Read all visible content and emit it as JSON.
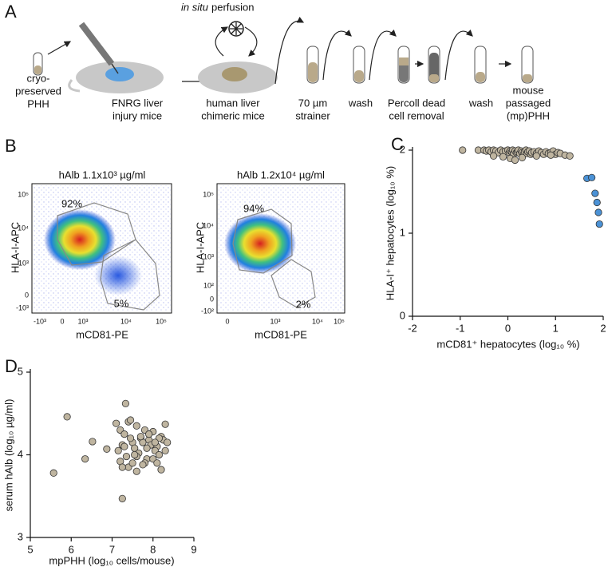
{
  "panel_a": {
    "label": "A",
    "cryo": [
      "cryo-",
      "preserved",
      "PHH"
    ],
    "fnrg": [
      "FNRG liver",
      "injury mice"
    ],
    "perfusion_italic": "in situ",
    "perfusion": "perfusion",
    "chimeric": [
      "human liver",
      "chimeric mice"
    ],
    "strainer": [
      "70 µm",
      "strainer"
    ],
    "wash1": "wash",
    "percoll": [
      "Percoll dead",
      "cell removal"
    ],
    "wash2": "wash",
    "mpphh": [
      "mouse",
      "passaged",
      "(mp)PHH"
    ]
  },
  "panel_b": {
    "label": "B",
    "plots": [
      {
        "title": "hAlb 1.1x10³ µg/ml",
        "ylabel": "HLA-I-APC",
        "xlabel": "mCD81-PE",
        "gates": [
          "92%",
          "5%"
        ],
        "yticks": [
          "10⁵",
          "10⁴",
          "10³",
          "0",
          "-10³"
        ],
        "xticks": [
          "-10³",
          "0",
          "10³",
          "10⁴",
          "10⁵"
        ]
      },
      {
        "title": "hAlb 1.2x10⁴ µg/ml",
        "ylabel": "HLA-I-APC",
        "xlabel": "mCD81-PE",
        "gates": [
          "94%",
          "2%"
        ],
        "yticks": [
          "10⁵",
          "10⁴",
          "10³",
          "10²",
          "0",
          "-10²"
        ],
        "xticks": [
          "0",
          "10³",
          "10⁴",
          "10⁵"
        ]
      }
    ]
  },
  "chart_data": [
    {
      "type": "scatter",
      "panel": "C",
      "xlabel": "mCD81⁺ hepatocytes (log₁₀ %)",
      "ylabel": "HLA-I⁺ hepatocytes (log₁₀ %)",
      "xlim": [
        -2,
        2
      ],
      "ylim": [
        0,
        2
      ],
      "xticks": [
        -2,
        -1,
        0,
        1,
        2
      ],
      "yticks": [
        0,
        1,
        2
      ],
      "series": [
        {
          "color": "#bfb5a0",
          "x": [
            -0.95,
            -0.62,
            -0.5,
            -0.45,
            -0.4,
            -0.35,
            -0.3,
            -0.25,
            -0.2,
            -0.15,
            -0.1,
            -0.05,
            0,
            0.03,
            0.05,
            0.08,
            0.1,
            0.12,
            0.15,
            0.18,
            0.2,
            0.22,
            0.25,
            0.28,
            0.3,
            0.33,
            0.35,
            0.38,
            0.4,
            0.42,
            0.45,
            0.48,
            0.5,
            0.55,
            0.6,
            0.65,
            0.7,
            0.75,
            0.8,
            0.85,
            0.9,
            0.95,
            1.0,
            1.05,
            1.1,
            1.2,
            1.3,
            -0.1,
            0.05,
            0.3,
            0.6,
            0.9,
            -0.3,
            0.15
          ],
          "y": [
            2.0,
            2.0,
            2.0,
            1.99,
            2.0,
            1.98,
            2.0,
            1.99,
            1.97,
            2.0,
            1.98,
            1.99,
            2.0,
            1.97,
            1.99,
            1.98,
            2.0,
            1.96,
            1.99,
            1.97,
            1.98,
            2.0,
            1.96,
            1.99,
            1.97,
            1.95,
            1.98,
            2.0,
            1.96,
            1.98,
            1.99,
            1.95,
            1.97,
            1.98,
            1.96,
            1.99,
            1.97,
            1.95,
            1.98,
            1.96,
            1.97,
            1.99,
            1.95,
            1.97,
            1.96,
            1.94,
            1.93,
            1.92,
            1.9,
            1.91,
            1.93,
            1.94,
            1.93,
            1.88
          ]
        },
        {
          "color": "#4b92d6",
          "x": [
            1.66,
            1.76,
            1.83,
            1.87,
            1.9,
            1.92
          ],
          "y": [
            1.66,
            1.67,
            1.48,
            1.37,
            1.25,
            1.11
          ]
        }
      ]
    },
    {
      "type": "scatter",
      "panel": "D",
      "xlabel": "mpPHH (log₁₀ cells/mouse)",
      "ylabel": "serum hAlb (log₁₀ µg/ml)",
      "xlim": [
        5,
        9
      ],
      "ylim": [
        3,
        5
      ],
      "xticks": [
        5,
        6,
        7,
        8,
        9
      ],
      "yticks": [
        3,
        4,
        5
      ],
      "series": [
        {
          "color": "#bfb5a0",
          "x": [
            5.57,
            5.9,
            6.34,
            6.52,
            6.87,
            7.25,
            7.33,
            7.1,
            7.2,
            7.3,
            7.4,
            7.5,
            7.6,
            7.7,
            7.8,
            7.9,
            8.0,
            8.1,
            8.2,
            8.3,
            7.15,
            7.25,
            7.35,
            7.45,
            7.55,
            7.65,
            7.75,
            7.85,
            7.95,
            8.05,
            8.15,
            8.25,
            8.35,
            7.2,
            7.4,
            7.6,
            7.8,
            8.0,
            8.2,
            7.3,
            7.5,
            7.7,
            7.9,
            8.1,
            8.3,
            7.25,
            7.55,
            7.85,
            8.15,
            7.45,
            7.75,
            8.05,
            7.6
          ],
          "y": [
            3.78,
            4.46,
            3.95,
            4.16,
            4.07,
            3.47,
            4.62,
            4.38,
            4.3,
            4.25,
            4.4,
            4.15,
            4.35,
            4.2,
            4.3,
            4.18,
            4.28,
            4.1,
            4.22,
            4.37,
            4.05,
            4.12,
            3.98,
            4.2,
            4.08,
            4.02,
            4.15,
            3.95,
            4.12,
            4.05,
            4.0,
            4.18,
            4.15,
            3.92,
            3.85,
            3.98,
            3.9,
            3.95,
            3.82,
            4.1,
            3.9,
            4.22,
            4.25,
            3.9,
            4.05,
            3.85,
            4.0,
            4.08,
            4.2,
            4.42,
            3.88,
            4.15,
            3.8
          ]
        }
      ]
    }
  ]
}
